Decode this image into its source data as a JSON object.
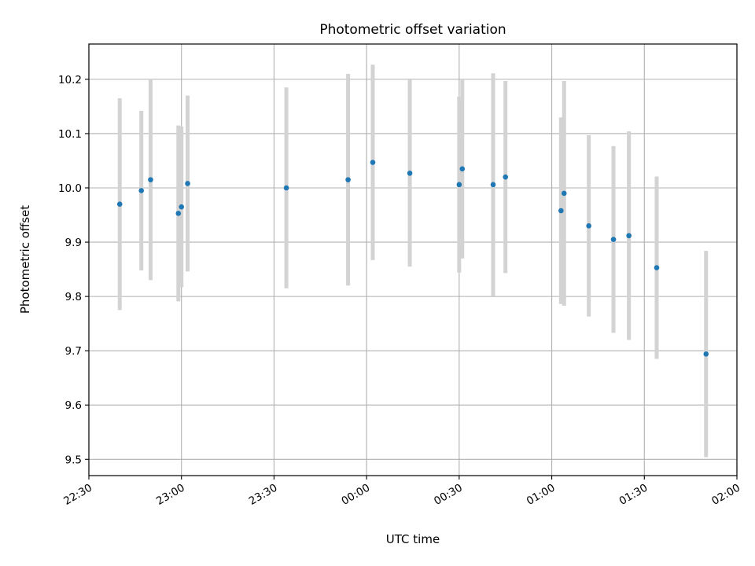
{
  "chart_data": {
    "type": "scatter",
    "title": "Photometric offset variation",
    "xlabel": "UTC time",
    "ylabel": "Photometric offset",
    "x_range": [
      "22:30",
      "02:00"
    ],
    "ylim": [
      9.47,
      10.265
    ],
    "x_ticks": [
      "22:30",
      "23:00",
      "23:30",
      "00:00",
      "00:30",
      "01:00",
      "01:30",
      "02:00"
    ],
    "y_ticks": [
      "9.5",
      "9.6",
      "9.7",
      "9.8",
      "9.9",
      "10.0",
      "10.1",
      "10.2"
    ],
    "grid": true,
    "colors": {
      "point": "#1f77b4",
      "error_bar": "#d3d3d3",
      "grid": "#b0b0b0"
    },
    "series": [
      {
        "points": [
          {
            "time": "22:40",
            "value": 9.97,
            "err": 0.195
          },
          {
            "time": "22:47",
            "value": 9.995,
            "err": 0.147
          },
          {
            "time": "22:50",
            "value": 10.015,
            "err": 0.185
          },
          {
            "time": "22:59",
            "value": 9.953,
            "err": 0.162
          },
          {
            "time": "23:00",
            "value": 9.965,
            "err": 0.148
          },
          {
            "time": "23:02",
            "value": 10.008,
            "err": 0.162
          },
          {
            "time": "23:34",
            "value": 10.0,
            "err": 0.185
          },
          {
            "time": "23:54",
            "value": 10.015,
            "err": 0.195
          },
          {
            "time": "00:02",
            "value": 10.047,
            "err": 0.18
          },
          {
            "time": "00:14",
            "value": 10.027,
            "err": 0.172
          },
          {
            "time": "00:30",
            "value": 10.006,
            "err": 0.162
          },
          {
            "time": "00:31",
            "value": 10.035,
            "err": 0.165
          },
          {
            "time": "00:41",
            "value": 10.006,
            "err": 0.205
          },
          {
            "time": "00:45",
            "value": 10.02,
            "err": 0.177
          },
          {
            "time": "01:03",
            "value": 9.958,
            "err": 0.172
          },
          {
            "time": "01:04",
            "value": 9.99,
            "err": 0.207
          },
          {
            "time": "01:12",
            "value": 9.93,
            "err": 0.167
          },
          {
            "time": "01:20",
            "value": 9.905,
            "err": 0.172
          },
          {
            "time": "01:25",
            "value": 9.912,
            "err": 0.192
          },
          {
            "time": "01:34",
            "value": 9.853,
            "err": 0.168
          },
          {
            "time": "01:50",
            "value": 9.694,
            "err": 0.19
          }
        ]
      }
    ]
  }
}
